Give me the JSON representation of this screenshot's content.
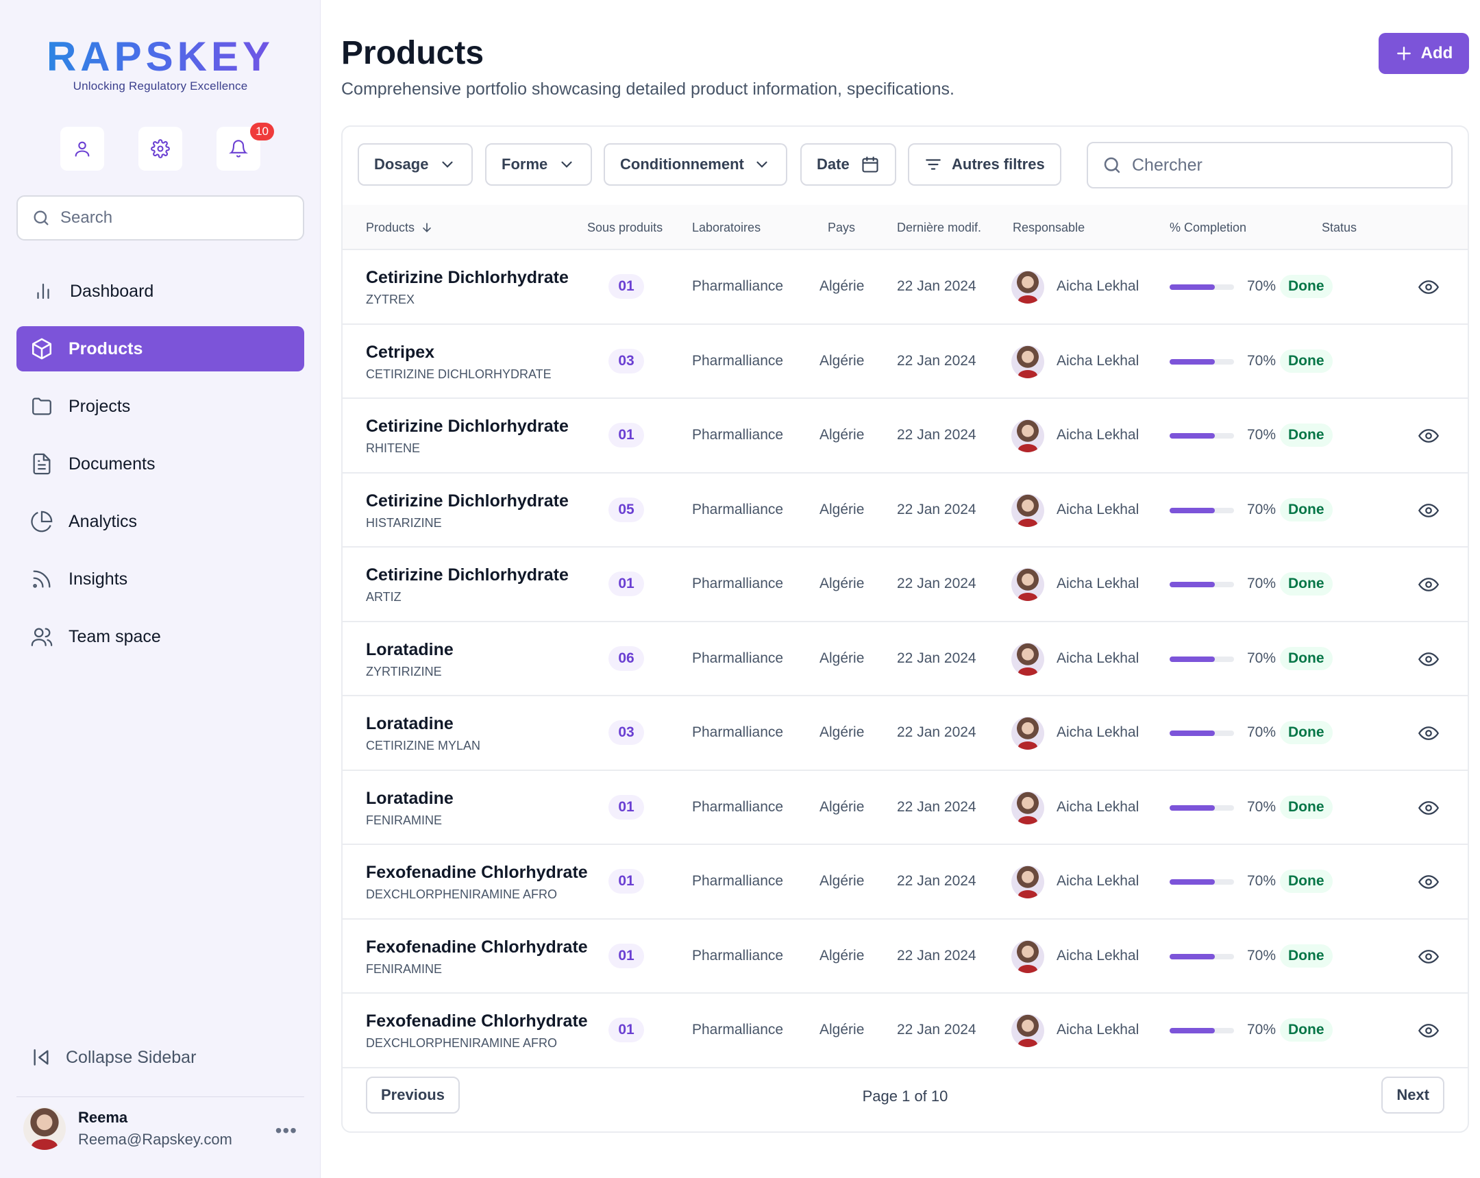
{
  "brand": {
    "name": "RAPSKEY",
    "tagline": "Unlocking Regulatory Excellence"
  },
  "sidebar": {
    "notification_count": "10",
    "search_placeholder": "Search",
    "nav": [
      {
        "label": "Dashboard",
        "icon": "bar-chart-icon"
      },
      {
        "label": "Products",
        "icon": "box-icon"
      },
      {
        "label": "Projects",
        "icon": "folder-icon"
      },
      {
        "label": "Documents",
        "icon": "document-icon"
      },
      {
        "label": "Analytics",
        "icon": "pie-chart-icon"
      },
      {
        "label": "Insights",
        "icon": "rss-icon"
      },
      {
        "label": "Team space",
        "icon": "users-icon"
      }
    ],
    "active_item": "Products",
    "collapse_label": "Collapse Sidebar",
    "user": {
      "name": "Reema",
      "email": "Reema@Rapskey.com"
    }
  },
  "header": {
    "title": "Products",
    "subtitle": "Comprehensive portfolio showcasing detailed product information, specifications.",
    "add_label": "Add"
  },
  "filters": {
    "dosage": "Dosage",
    "forme": "Forme",
    "conditionnement": "Conditionnement",
    "date": "Date",
    "autres": "Autres filtres",
    "search_placeholder": "Chercher"
  },
  "table": {
    "columns": {
      "products": "Products",
      "sous_produits": "Sous produits",
      "laboratoires": "Laboratoires",
      "pays": "Pays",
      "derniere_modif": "Dernière modif.",
      "responsable": "Responsable",
      "completion": "% Completion",
      "status": "Status"
    },
    "rows": [
      {
        "name": "Cetirizine Dichlorhydrate",
        "sub": "ZYTREX",
        "count": "01",
        "lab": "Pharmalliance",
        "country": "Algérie",
        "modified": "22 Jan 2024",
        "owner": "Aicha Lekhal",
        "completion": 0.7,
        "completion_label": "70%",
        "status": "Done",
        "has_view": true
      },
      {
        "name": "Cetripex",
        "sub": "CETIRIZINE DICHLORHYDRATE",
        "count": "03",
        "lab": "Pharmalliance",
        "country": "Algérie",
        "modified": "22 Jan 2024",
        "owner": "Aicha Lekhal",
        "completion": 0.7,
        "completion_label": "70%",
        "status": "Done",
        "has_view": false
      },
      {
        "name": "Cetirizine Dichlorhydrate",
        "sub": "RHITENE",
        "count": "01",
        "lab": "Pharmalliance",
        "country": "Algérie",
        "modified": "22 Jan 2024",
        "owner": "Aicha Lekhal",
        "completion": 0.7,
        "completion_label": "70%",
        "status": "Done",
        "has_view": true
      },
      {
        "name": "Cetirizine Dichlorhydrate",
        "sub": "HISTARIZINE",
        "count": "05",
        "lab": "Pharmalliance",
        "country": "Algérie",
        "modified": "22 Jan 2024",
        "owner": "Aicha Lekhal",
        "completion": 0.7,
        "completion_label": "70%",
        "status": "Done",
        "has_view": true
      },
      {
        "name": "Cetirizine Dichlorhydrate",
        "sub": "ARTIZ",
        "count": "01",
        "lab": "Pharmalliance",
        "country": "Algérie",
        "modified": "22 Jan 2024",
        "owner": "Aicha Lekhal",
        "completion": 0.7,
        "completion_label": "70%",
        "status": "Done",
        "has_view": true
      },
      {
        "name": "Loratadine",
        "sub": "ZYRTIRIZINE",
        "count": "06",
        "lab": "Pharmalliance",
        "country": "Algérie",
        "modified": "22 Jan 2024",
        "owner": "Aicha Lekhal",
        "completion": 0.7,
        "completion_label": "70%",
        "status": "Done",
        "has_view": true
      },
      {
        "name": "Loratadine",
        "sub": "CETIRIZINE MYLAN",
        "count": "03",
        "lab": "Pharmalliance",
        "country": "Algérie",
        "modified": "22 Jan 2024",
        "owner": "Aicha Lekhal",
        "completion": 0.7,
        "completion_label": "70%",
        "status": "Done",
        "has_view": true
      },
      {
        "name": "Loratadine",
        "sub": "FENIRAMINE",
        "count": "01",
        "lab": "Pharmalliance",
        "country": "Algérie",
        "modified": "22 Jan 2024",
        "owner": "Aicha Lekhal",
        "completion": 0.7,
        "completion_label": "70%",
        "status": "Done",
        "has_view": true
      },
      {
        "name": "Fexofenadine Chlorhydrate",
        "sub": "DEXCHLORPHENIRAMINE AFRO",
        "count": "01",
        "lab": "Pharmalliance",
        "country": "Algérie",
        "modified": "22 Jan 2024",
        "owner": "Aicha Lekhal",
        "completion": 0.7,
        "completion_label": "70%",
        "status": "Done",
        "has_view": true
      },
      {
        "name": "Fexofenadine Chlorhydrate",
        "sub": "FENIRAMINE",
        "count": "01",
        "lab": "Pharmalliance",
        "country": "Algérie",
        "modified": "22 Jan 2024",
        "owner": "Aicha Lekhal",
        "completion": 0.7,
        "completion_label": "70%",
        "status": "Done",
        "has_view": true
      },
      {
        "name": "Fexofenadine Chlorhydrate",
        "sub": "DEXCHLORPHENIRAMINE AFRO",
        "count": "01",
        "lab": "Pharmalliance",
        "country": "Algérie",
        "modified": "22 Jan 2024",
        "owner": "Aicha Lekhal",
        "completion": 0.7,
        "completion_label": "70%",
        "status": "Done",
        "has_view": true
      }
    ]
  },
  "pagination": {
    "previous": "Previous",
    "page_label": "Page 1 of 10",
    "next": "Next"
  },
  "colors": {
    "accent": "#7c54d9",
    "done_text": "#067647",
    "done_bg": "#ecfdf3",
    "badge_red": "#ef3b3b"
  }
}
